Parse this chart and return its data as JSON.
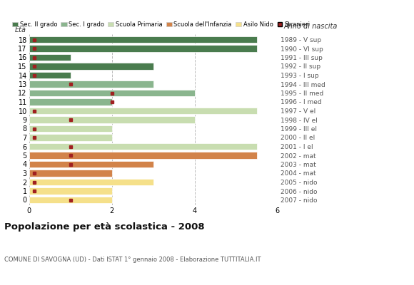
{
  "ages": [
    18,
    17,
    16,
    15,
    14,
    13,
    12,
    11,
    10,
    9,
    8,
    7,
    6,
    5,
    4,
    3,
    2,
    1,
    0
  ],
  "right_labels": [
    "1989 - V sup",
    "1990 - VI sup",
    "1991 - III sup",
    "1992 - II sup",
    "1993 - I sup",
    "1994 - III med",
    "1995 - II med",
    "1996 - I med",
    "1997 - V el",
    "1998 - IV el",
    "1999 - III el",
    "2000 - II el",
    "2001 - I el",
    "2002 - mat",
    "2003 - mat",
    "2004 - mat",
    "2005 - nido",
    "2006 - nido",
    "2007 - nido"
  ],
  "bar_values": [
    5.5,
    5.5,
    1.0,
    3.0,
    1.0,
    3.0,
    4.0,
    2.0,
    5.5,
    4.0,
    2.0,
    2.0,
    5.5,
    5.5,
    3.0,
    2.0,
    3.0,
    2.0,
    2.0
  ],
  "bar_colors": [
    "#4a7c4e",
    "#4a7c4e",
    "#4a7c4e",
    "#4a7c4e",
    "#4a7c4e",
    "#8ab58e",
    "#8ab58e",
    "#8ab58e",
    "#c8ddb0",
    "#c8ddb0",
    "#c8ddb0",
    "#c8ddb0",
    "#c8ddb0",
    "#d2834a",
    "#d2834a",
    "#d2834a",
    "#f5e08a",
    "#f5e08a",
    "#f5e08a"
  ],
  "stranieri_marker_x": {
    "18": 0.12,
    "17": 0.12,
    "16": 0.12,
    "15": 0.12,
    "14": 0.12,
    "13": 1.0,
    "12": 2.0,
    "11": 2.0,
    "10": 0.12,
    "9": 1.0,
    "8": 0.12,
    "7": 0.12,
    "6": 1.0,
    "5": 1.0,
    "4": 1.0,
    "3": 0.12,
    "2": 0.12,
    "1": 0.12,
    "0": 1.0
  },
  "legend_labels": [
    "Sec. II grado",
    "Sec. I grado",
    "Scuola Primaria",
    "Scuola dell'Infanzia",
    "Asilo Nido",
    "Stranieri"
  ],
  "legend_colors": [
    "#4a7c4e",
    "#8ab58e",
    "#c8ddb0",
    "#d2834a",
    "#f5e08a",
    "#a02020"
  ],
  "title": "Popolazione per età scolastica - 2008",
  "subtitle": "COMUNE DI SAVOGNA (UD) - Dati ISTAT 1° gennaio 2008 - Elaborazione TUTTITALIA.IT",
  "xlabel_eta": "Età",
  "xlabel_anno": "Anno di nascita",
  "xlim": [
    0,
    6
  ],
  "xticks": [
    0,
    2,
    4,
    6
  ],
  "background_color": "#ffffff",
  "bar_height": 0.75
}
